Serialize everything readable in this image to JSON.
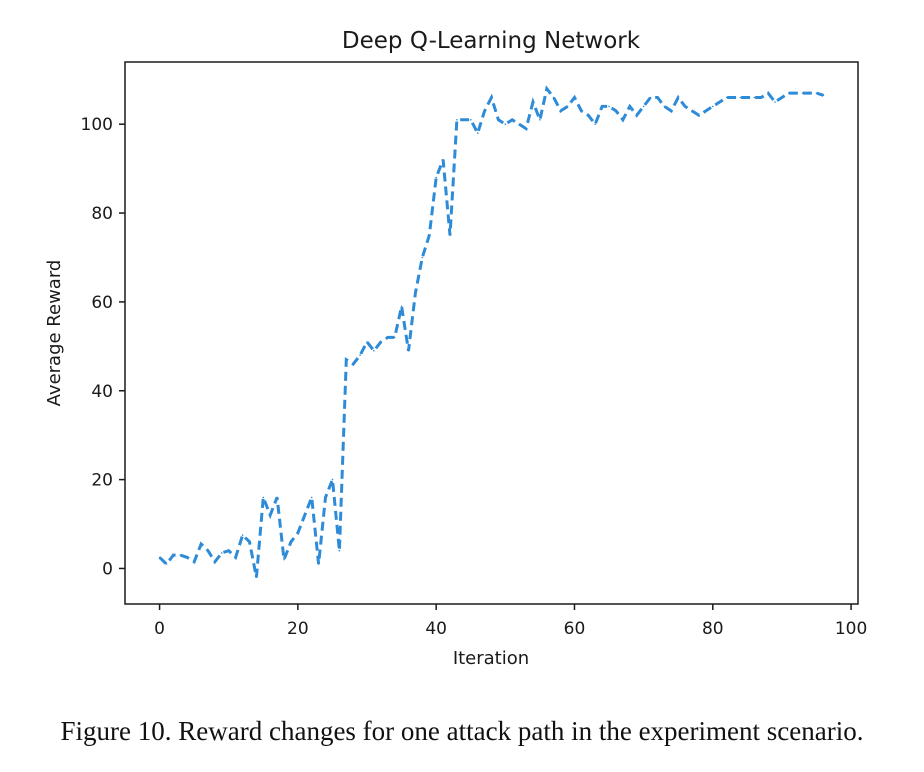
{
  "chart_data": {
    "type": "line",
    "title": "Deep Q-Learning Network",
    "xlabel": "Iteration",
    "ylabel": "Average Reward",
    "xlim": [
      -5,
      101
    ],
    "ylim": [
      -8,
      114
    ],
    "xticks": [
      0,
      20,
      40,
      60,
      80,
      100
    ],
    "yticks": [
      0,
      20,
      40,
      60,
      80,
      100
    ],
    "grid": false,
    "series": [
      {
        "name": "Average Reward",
        "color": "#2e8bd8",
        "style": "dashed",
        "x": [
          0,
          1,
          2,
          3,
          4,
          5,
          6,
          7,
          8,
          9,
          10,
          11,
          12,
          13,
          14,
          15,
          16,
          17,
          18,
          19,
          20,
          21,
          22,
          23,
          24,
          25,
          26,
          27,
          28,
          29,
          30,
          31,
          32,
          33,
          34,
          35,
          36,
          37,
          38,
          39,
          40,
          41,
          42,
          43,
          44,
          45,
          46,
          47,
          48,
          49,
          50,
          51,
          52,
          53,
          54,
          55,
          56,
          57,
          58,
          59,
          60,
          61,
          62,
          63,
          64,
          65,
          66,
          67,
          68,
          69,
          70,
          71,
          72,
          73,
          74,
          75,
          76,
          77,
          78,
          79,
          80,
          81,
          82,
          83,
          84,
          85,
          86,
          87,
          88,
          89,
          90,
          91,
          92,
          93,
          94,
          95,
          96
        ],
        "y": [
          2.5,
          1,
          3,
          3,
          2.5,
          1.5,
          5.5,
          4,
          1.5,
          3.5,
          4,
          2.5,
          7.5,
          6,
          -2,
          16,
          12,
          16,
          2,
          6,
          8,
          12,
          16,
          1,
          16,
          20,
          4,
          47,
          46,
          48,
          51,
          49,
          51,
          52,
          52,
          59,
          49,
          62,
          70,
          75,
          88,
          92,
          75,
          101,
          101,
          101,
          98,
          103,
          106,
          101,
          100,
          101,
          100,
          99,
          105,
          101,
          108,
          106,
          103,
          104,
          106,
          103,
          102,
          100,
          104,
          104,
          103,
          101,
          104,
          102,
          104,
          106,
          106,
          104,
          103,
          106,
          104,
          103,
          102,
          103,
          104,
          105,
          106,
          106,
          106,
          106,
          106,
          106,
          107,
          105,
          106,
          107,
          107,
          107,
          107,
          107,
          106.5
        ]
      }
    ]
  },
  "caption": "Figure 10.   Reward changes for one attack path in the experiment scenario."
}
